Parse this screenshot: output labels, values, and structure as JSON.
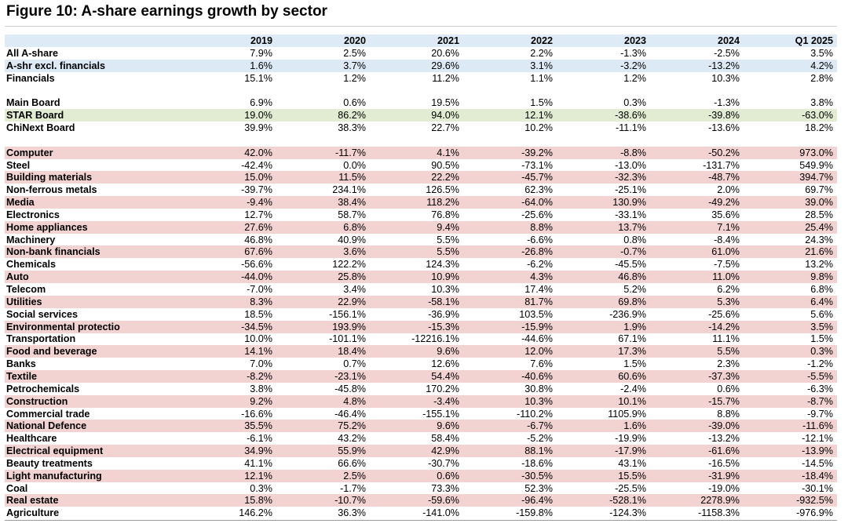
{
  "colors": {
    "header": "#deeaf5",
    "blue": "#ddeaf6",
    "green": "#e1ecd2",
    "pink": "#f3d2d2"
  },
  "chart_data": {
    "type": "table",
    "title": "Figure 10: A-share earnings growth by sector",
    "columns": [
      "2019",
      "2020",
      "2021",
      "2022",
      "2023",
      "2024",
      "Q1 2025"
    ],
    "rows": [
      {
        "label": "All A-share",
        "values": [
          "7.9%",
          "2.5%",
          "20.6%",
          "2.2%",
          "-1.3%",
          "-2.5%",
          "3.5%"
        ]
      },
      {
        "label": "A-shr excl. financials",
        "values": [
          "1.6%",
          "3.7%",
          "29.6%",
          "3.1%",
          "-3.2%",
          "-13.2%",
          "4.2%"
        ],
        "highlight": "blue"
      },
      {
        "label": "Financials",
        "values": [
          "15.1%",
          "1.2%",
          "11.2%",
          "1.1%",
          "1.2%",
          "10.3%",
          "2.8%"
        ]
      },
      {
        "label": "",
        "values": [
          "",
          "",
          "",
          "",
          "",
          "",
          ""
        ],
        "spacer": true
      },
      {
        "label": "Main Board",
        "values": [
          "6.9%",
          "0.6%",
          "19.5%",
          "1.5%",
          "0.3%",
          "-1.3%",
          "3.8%"
        ]
      },
      {
        "label": "STAR Board",
        "values": [
          "19.0%",
          "86.2%",
          "94.0%",
          "12.1%",
          "-38.6%",
          "-39.8%",
          "-63.0%"
        ],
        "highlight": "green"
      },
      {
        "label": "ChiNext Board",
        "values": [
          "39.9%",
          "38.3%",
          "22.7%",
          "10.2%",
          "-11.1%",
          "-13.6%",
          "18.2%"
        ]
      },
      {
        "label": "",
        "values": [
          "",
          "",
          "",
          "",
          "",
          "",
          ""
        ],
        "spacer": true
      },
      {
        "label": "Computer",
        "values": [
          "42.0%",
          "-11.7%",
          "4.1%",
          "-39.2%",
          "-8.8%",
          "-50.2%",
          "973.0%"
        ],
        "highlight": "pink"
      },
      {
        "label": "Steel",
        "values": [
          "-42.4%",
          "0.0%",
          "90.5%",
          "-73.1%",
          "-13.0%",
          "-131.7%",
          "549.9%"
        ]
      },
      {
        "label": "Building materials",
        "values": [
          "15.0%",
          "11.5%",
          "22.2%",
          "-45.7%",
          "-32.3%",
          "-48.7%",
          "394.7%"
        ],
        "highlight": "pink"
      },
      {
        "label": "Non-ferrous metals",
        "values": [
          "-39.7%",
          "234.1%",
          "126.5%",
          "62.3%",
          "-25.1%",
          "2.0%",
          "69.7%"
        ]
      },
      {
        "label": "Media",
        "values": [
          "-9.4%",
          "38.4%",
          "118.2%",
          "-64.0%",
          "130.9%",
          "-49.2%",
          "39.0%"
        ],
        "highlight": "pink"
      },
      {
        "label": "Electronics",
        "values": [
          "12.7%",
          "58.7%",
          "76.8%",
          "-25.6%",
          "-33.1%",
          "35.6%",
          "28.5%"
        ]
      },
      {
        "label": "Home appliances",
        "values": [
          "27.6%",
          "6.8%",
          "9.4%",
          "8.8%",
          "13.7%",
          "7.1%",
          "25.4%"
        ],
        "highlight": "pink"
      },
      {
        "label": "Machinery",
        "values": [
          "46.8%",
          "40.9%",
          "5.5%",
          "-6.6%",
          "0.8%",
          "-8.4%",
          "24.3%"
        ]
      },
      {
        "label": "Non-bank financials",
        "values": [
          "67.6%",
          "3.6%",
          "5.5%",
          "-26.8%",
          "-0.7%",
          "61.0%",
          "21.6%"
        ],
        "highlight": "pink"
      },
      {
        "label": "Chemicals",
        "values": [
          "-56.6%",
          "122.2%",
          "124.3%",
          "-6.2%",
          "-45.5%",
          "-7.5%",
          "13.2%"
        ]
      },
      {
        "label": "Auto",
        "values": [
          "-44.0%",
          "25.8%",
          "10.9%",
          "4.3%",
          "46.8%",
          "11.0%",
          "9.8%"
        ],
        "highlight": "pink"
      },
      {
        "label": "Telecom",
        "values": [
          "-7.0%",
          "3.4%",
          "10.3%",
          "17.4%",
          "5.2%",
          "6.2%",
          "6.8%"
        ]
      },
      {
        "label": "Utilities",
        "values": [
          "8.3%",
          "22.9%",
          "-58.1%",
          "81.7%",
          "69.8%",
          "5.3%",
          "6.4%"
        ],
        "highlight": "pink"
      },
      {
        "label": "Social services",
        "values": [
          "18.5%",
          "-156.1%",
          "-36.9%",
          "103.5%",
          "-236.9%",
          "-25.6%",
          "5.6%"
        ]
      },
      {
        "label": "Environmental protectio",
        "values": [
          "-34.5%",
          "193.9%",
          "-15.3%",
          "-15.9%",
          "1.9%",
          "-14.2%",
          "3.5%"
        ],
        "highlight": "pink"
      },
      {
        "label": "Transportation",
        "values": [
          "10.0%",
          "-101.1%",
          "-12216.1%",
          "-44.6%",
          "67.1%",
          "11.1%",
          "1.5%"
        ]
      },
      {
        "label": "Food and beverage",
        "values": [
          "14.1%",
          "18.4%",
          "9.6%",
          "12.0%",
          "17.3%",
          "5.5%",
          "0.3%"
        ],
        "highlight": "pink"
      },
      {
        "label": "Banks",
        "values": [
          "7.0%",
          "0.7%",
          "12.6%",
          "7.6%",
          "1.5%",
          "2.3%",
          "-1.2%"
        ]
      },
      {
        "label": "Textile",
        "values": [
          "-8.2%",
          "-23.1%",
          "54.4%",
          "-40.6%",
          "60.6%",
          "-37.3%",
          "-5.5%"
        ],
        "highlight": "pink"
      },
      {
        "label": "Petrochemicals",
        "values": [
          "3.8%",
          "-45.8%",
          "170.2%",
          "30.8%",
          "-2.4%",
          "0.6%",
          "-6.3%"
        ]
      },
      {
        "label": "Construction",
        "values": [
          "9.2%",
          "4.8%",
          "-3.4%",
          "10.3%",
          "10.1%",
          "-15.7%",
          "-8.7%"
        ],
        "highlight": "pink"
      },
      {
        "label": "Commercial trade",
        "values": [
          "-16.6%",
          "-46.4%",
          "-155.1%",
          "-110.2%",
          "1105.9%",
          "8.8%",
          "-9.7%"
        ]
      },
      {
        "label": "National Defence",
        "values": [
          "35.5%",
          "75.2%",
          "9.6%",
          "-6.7%",
          "1.6%",
          "-39.0%",
          "-11.6%"
        ],
        "highlight": "pink"
      },
      {
        "label": "Healthcare",
        "values": [
          "-6.1%",
          "43.2%",
          "58.4%",
          "-5.2%",
          "-19.9%",
          "-13.2%",
          "-12.1%"
        ]
      },
      {
        "label": "Electrical equipment",
        "values": [
          "34.9%",
          "55.9%",
          "42.9%",
          "88.1%",
          "-17.9%",
          "-61.6%",
          "-13.9%"
        ],
        "highlight": "pink"
      },
      {
        "label": "Beauty treatments",
        "values": [
          "41.1%",
          "66.6%",
          "-30.7%",
          "-18.6%",
          "43.1%",
          "-16.5%",
          "-14.5%"
        ]
      },
      {
        "label": "Light manufacturing",
        "values": [
          "12.1%",
          "2.5%",
          "0.6%",
          "-30.5%",
          "15.5%",
          "-31.9%",
          "-18.4%"
        ],
        "highlight": "pink"
      },
      {
        "label": "Coal",
        "values": [
          "0.3%",
          "-1.7%",
          "73.3%",
          "52.3%",
          "-25.5%",
          "-19.0%",
          "-30.1%"
        ]
      },
      {
        "label": "Real estate",
        "values": [
          "15.8%",
          "-10.7%",
          "-59.6%",
          "-96.4%",
          "-528.1%",
          "2278.9%",
          "-932.5%"
        ],
        "highlight": "pink"
      },
      {
        "label": "Agriculture",
        "values": [
          "146.2%",
          "36.3%",
          "-141.0%",
          "-159.8%",
          "-124.3%",
          "-1158.3%",
          "-976.9%"
        ]
      }
    ]
  }
}
